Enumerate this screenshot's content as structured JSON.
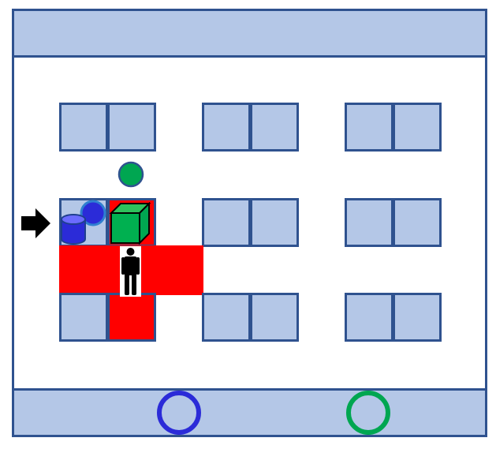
{
  "scene": {
    "background": "#ffffff",
    "wall_color": "#2f528f",
    "shelf_color": "#b4c7e7",
    "hazard_color": "#ff0000"
  },
  "agent": {
    "icon": "person-icon",
    "color": "#000000"
  },
  "objects": {
    "green_marker": {
      "icon": "green-circle-icon",
      "color": "#00a651"
    },
    "blue_marker": {
      "icon": "blue-circle-icon",
      "color": "#2b2bd8"
    },
    "green_box": {
      "icon": "green-cube-icon",
      "color": "#00a651"
    },
    "blue_barrel": {
      "icon": "blue-cylinder-icon",
      "color": "#2b2bd8"
    },
    "entry_arrow": {
      "icon": "right-arrow-icon",
      "color": "#000000"
    }
  },
  "goals": {
    "blue": {
      "icon": "blue-ring-icon",
      "color": "#2b2bd8"
    },
    "green": {
      "icon": "green-ring-icon",
      "color": "#00a651"
    }
  }
}
